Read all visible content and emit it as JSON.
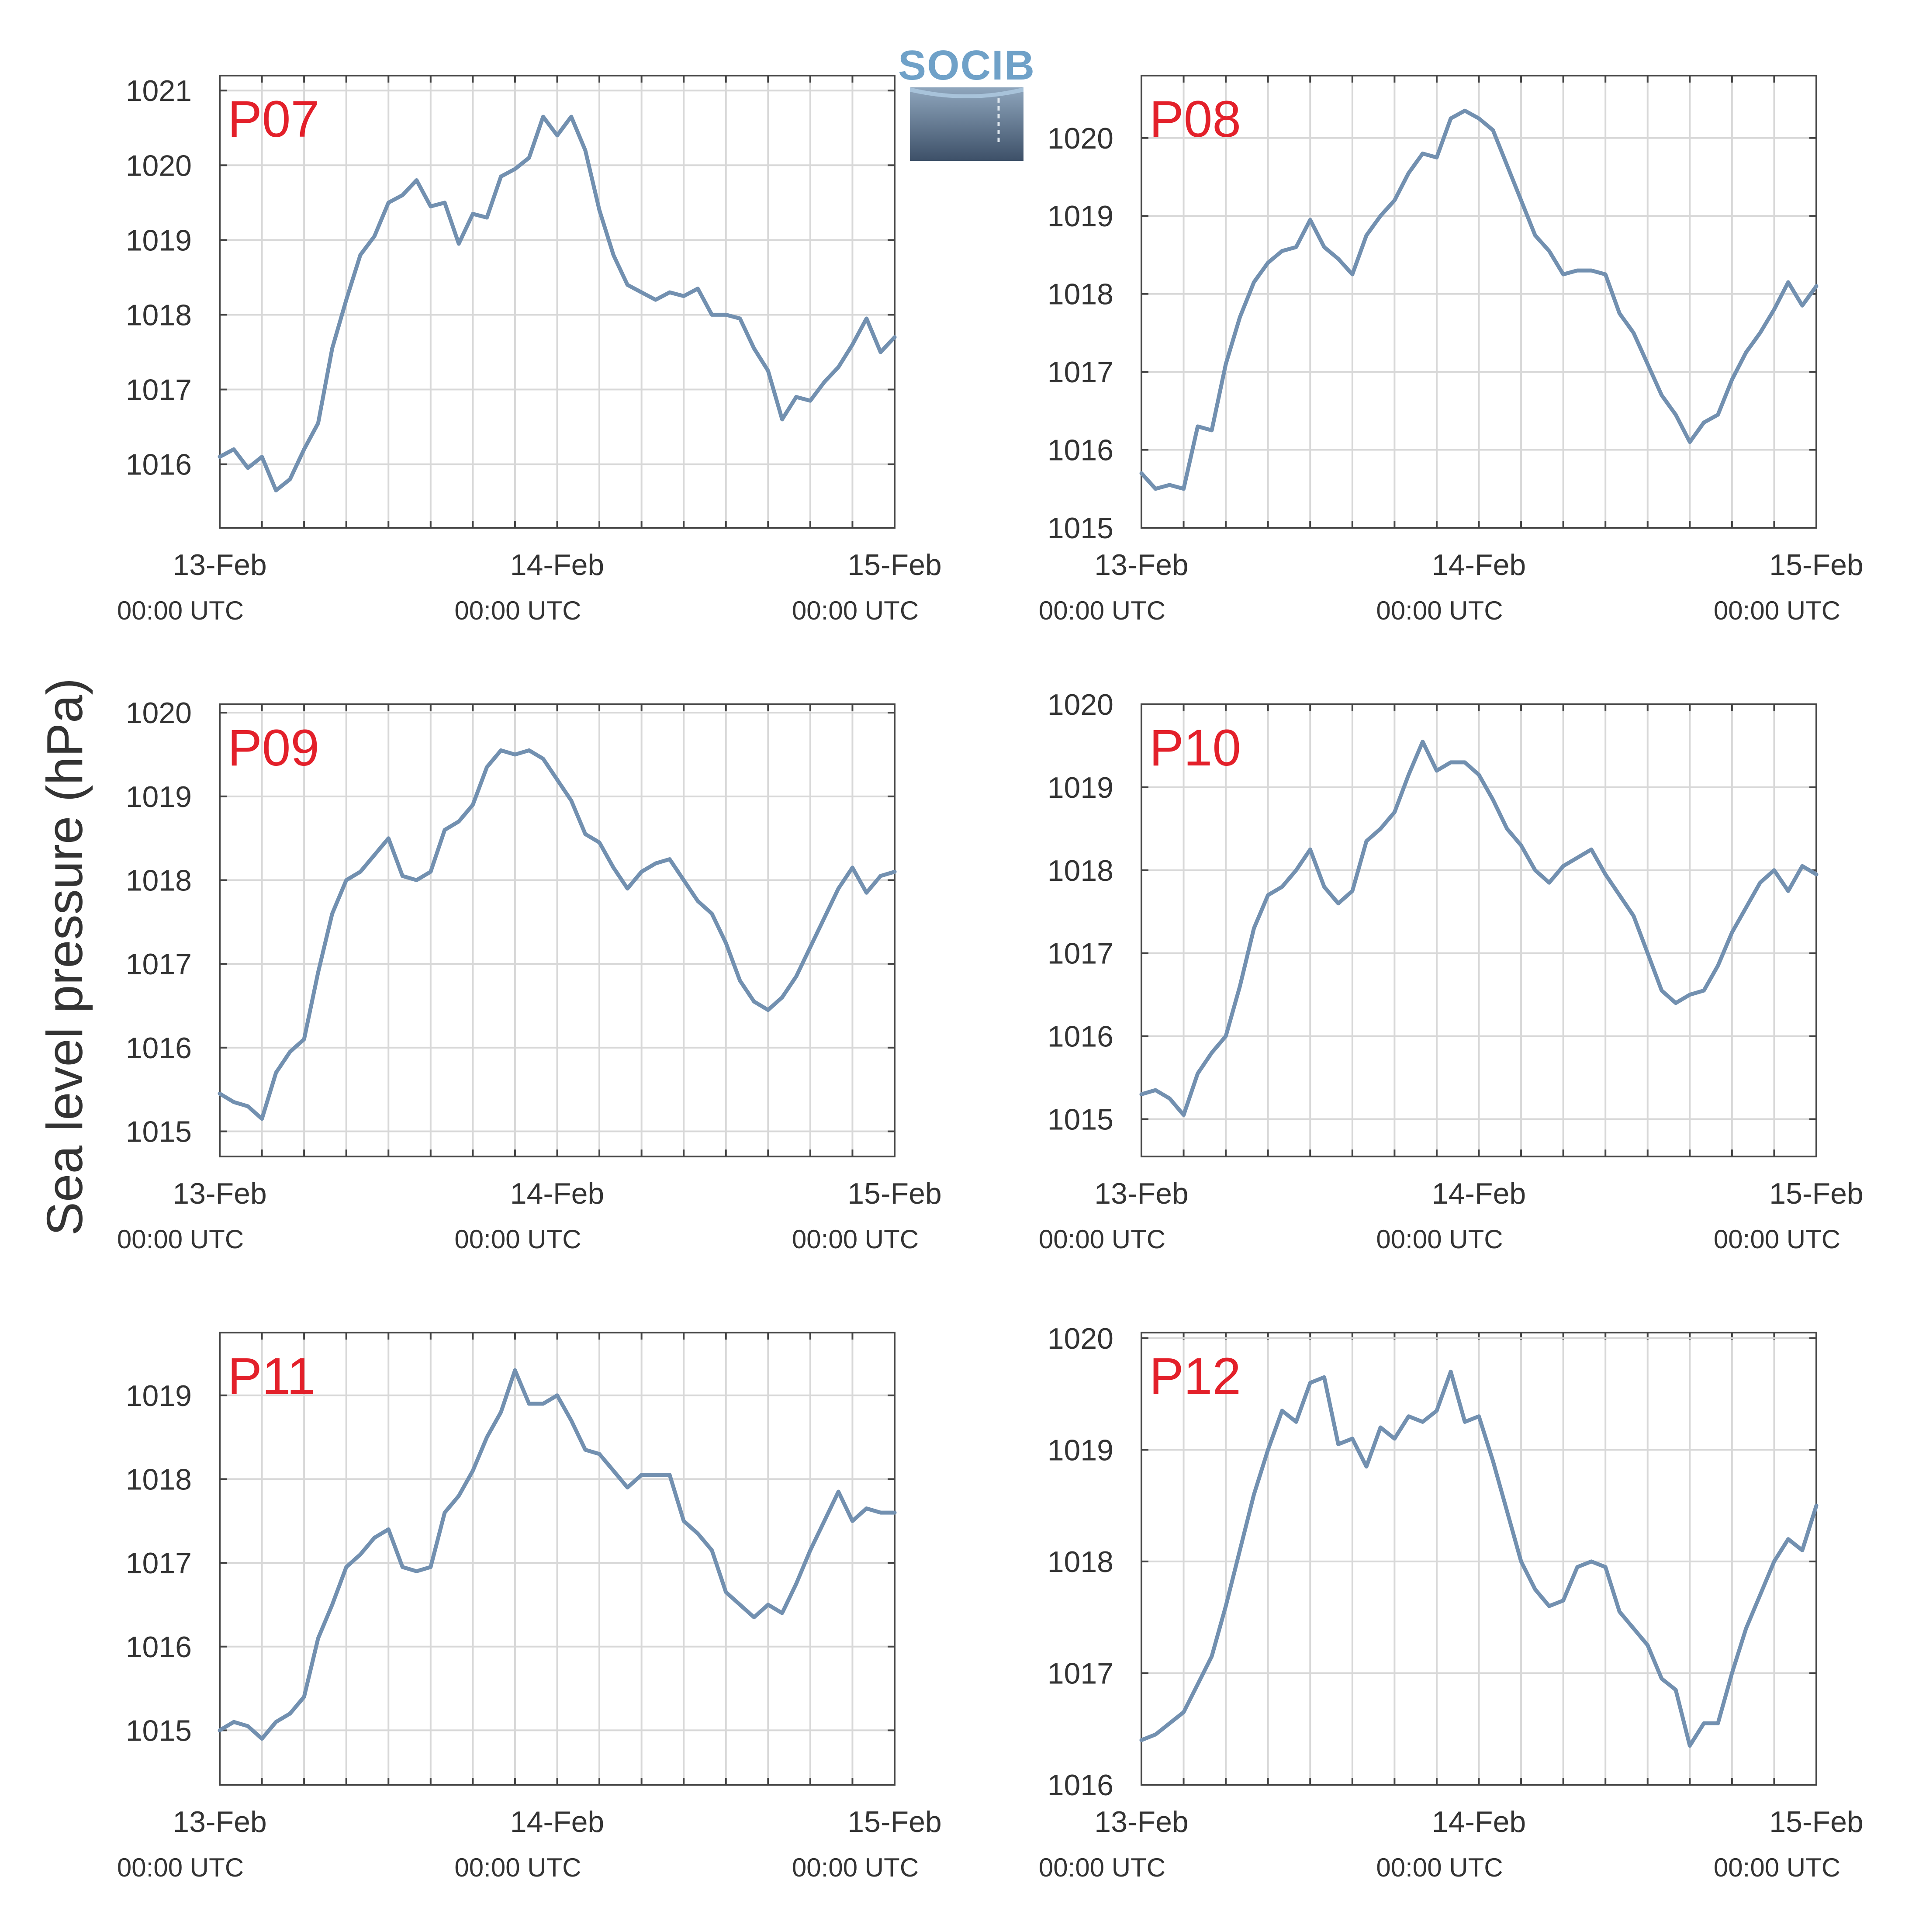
{
  "figure": {
    "ylabel": "Sea level pressure (hPa)",
    "logo": {
      "text": "SOCIB"
    },
    "colors": {
      "line": "#7290b0",
      "panel_label": "#e3202a",
      "grid": "#d8d8d8",
      "axis": "#444444",
      "text": "#333333"
    }
  },
  "chart_data": [
    {
      "type": "line",
      "panel": "P07",
      "grid": true,
      "x_hours": [
        0,
        3,
        6,
        9,
        12,
        15,
        18,
        21,
        24,
        27,
        30,
        33,
        36,
        39,
        42,
        45,
        48
      ],
      "x_ticks": [
        {
          "x": 0,
          "label": "13-Feb",
          "sub": "00:00 UTC"
        },
        {
          "x": 24,
          "label": "14-Feb",
          "sub": "00:00 UTC"
        },
        {
          "x": 48,
          "label": "15-Feb",
          "sub": "00:00 UTC"
        }
      ],
      "y_ticks": [
        1016,
        1017,
        1018,
        1019,
        1020,
        1021
      ],
      "ylim": [
        1015.15,
        1021.2
      ],
      "series": [
        {
          "x": [
            0,
            1,
            2,
            3,
            4,
            5,
            6,
            7,
            8,
            9,
            10,
            11,
            12,
            13,
            14,
            15,
            16,
            17,
            18,
            19,
            20,
            21,
            22,
            23,
            24,
            25,
            26,
            27,
            28,
            29,
            30,
            31,
            32,
            33,
            34,
            35,
            36,
            37,
            38,
            39,
            40,
            41,
            42,
            43,
            44,
            45,
            46,
            47,
            48
          ],
          "y": [
            1016.1,
            1016.2,
            1015.95,
            1016.1,
            1015.65,
            1015.8,
            1016.2,
            1016.55,
            1017.55,
            1018.2,
            1018.8,
            1019.05,
            1019.5,
            1019.6,
            1019.8,
            1019.45,
            1019.5,
            1018.95,
            1019.35,
            1019.3,
            1019.85,
            1019.95,
            1020.1,
            1020.65,
            1020.4,
            1020.65,
            1020.2,
            1019.4,
            1018.8,
            1018.4,
            1018.3,
            1018.2,
            1018.3,
            1018.25,
            1018.35,
            1018.0,
            1018.0,
            1017.95,
            1017.55,
            1017.25,
            1016.6,
            1016.9,
            1016.85,
            1017.1,
            1017.3,
            1017.6,
            1017.95,
            1017.5,
            1017.7
          ]
        }
      ]
    },
    {
      "type": "line",
      "panel": "P08",
      "grid": true,
      "x_hours": [
        0,
        3,
        6,
        9,
        12,
        15,
        18,
        21,
        24,
        27,
        30,
        33,
        36,
        39,
        42,
        45,
        48
      ],
      "x_ticks": [
        {
          "x": 0,
          "label": "13-Feb",
          "sub": "00:00 UTC"
        },
        {
          "x": 24,
          "label": "14-Feb",
          "sub": "00:00 UTC"
        },
        {
          "x": 48,
          "label": "15-Feb",
          "sub": "00:00 UTC"
        }
      ],
      "y_ticks": [
        1015,
        1016,
        1017,
        1018,
        1019,
        1020
      ],
      "ylim": [
        1015.0,
        1020.8
      ],
      "series": [
        {
          "x": [
            0,
            1,
            2,
            3,
            4,
            5,
            6,
            7,
            8,
            9,
            10,
            11,
            12,
            13,
            14,
            15,
            16,
            17,
            18,
            19,
            20,
            21,
            22,
            23,
            24,
            25,
            26,
            27,
            28,
            29,
            30,
            31,
            32,
            33,
            34,
            35,
            36,
            37,
            38,
            39,
            40,
            41,
            42,
            43,
            44,
            45,
            46,
            47,
            48
          ],
          "y": [
            1015.7,
            1015.5,
            1015.55,
            1015.5,
            1016.3,
            1016.25,
            1017.1,
            1017.7,
            1018.15,
            1018.4,
            1018.55,
            1018.6,
            1018.95,
            1018.6,
            1018.45,
            1018.25,
            1018.75,
            1019.0,
            1019.2,
            1019.55,
            1019.8,
            1019.75,
            1020.25,
            1020.35,
            1020.25,
            1020.1,
            1019.65,
            1019.2,
            1018.75,
            1018.55,
            1018.25,
            1018.3,
            1018.3,
            1018.25,
            1017.75,
            1017.5,
            1017.1,
            1016.7,
            1016.45,
            1016.1,
            1016.35,
            1016.45,
            1016.9,
            1017.25,
            1017.5,
            1017.8,
            1018.15,
            1017.85,
            1018.1
          ]
        }
      ]
    },
    {
      "type": "line",
      "panel": "P09",
      "grid": true,
      "x_hours": [
        0,
        3,
        6,
        9,
        12,
        15,
        18,
        21,
        24,
        27,
        30,
        33,
        36,
        39,
        42,
        45,
        48
      ],
      "x_ticks": [
        {
          "x": 0,
          "label": "13-Feb",
          "sub": "00:00 UTC"
        },
        {
          "x": 24,
          "label": "14-Feb",
          "sub": "00:00 UTC"
        },
        {
          "x": 48,
          "label": "15-Feb",
          "sub": "00:00 UTC"
        }
      ],
      "y_ticks": [
        1015,
        1016,
        1017,
        1018,
        1019,
        1020
      ],
      "ylim": [
        1014.7,
        1020.1
      ],
      "series": [
        {
          "x": [
            0,
            1,
            2,
            3,
            4,
            5,
            6,
            7,
            8,
            9,
            10,
            11,
            12,
            13,
            14,
            15,
            16,
            17,
            18,
            19,
            20,
            21,
            22,
            23,
            24,
            25,
            26,
            27,
            28,
            29,
            30,
            31,
            32,
            33,
            34,
            35,
            36,
            37,
            38,
            39,
            40,
            41,
            42,
            43,
            44,
            45,
            46,
            47,
            48
          ],
          "y": [
            1015.45,
            1015.35,
            1015.3,
            1015.15,
            1015.7,
            1015.95,
            1016.1,
            1016.9,
            1017.6,
            1018.0,
            1018.1,
            1018.3,
            1018.5,
            1018.05,
            1018.0,
            1018.1,
            1018.6,
            1018.7,
            1018.9,
            1019.35,
            1019.55,
            1019.5,
            1019.55,
            1019.45,
            1019.2,
            1018.95,
            1018.55,
            1018.45,
            1018.15,
            1017.9,
            1018.1,
            1018.2,
            1018.25,
            1018.0,
            1017.75,
            1017.6,
            1017.25,
            1016.8,
            1016.55,
            1016.45,
            1016.6,
            1016.85,
            1017.2,
            1017.55,
            1017.9,
            1018.15,
            1017.85,
            1018.05,
            1018.1
          ]
        }
      ]
    },
    {
      "type": "line",
      "panel": "P10",
      "grid": true,
      "x_hours": [
        0,
        3,
        6,
        9,
        12,
        15,
        18,
        21,
        24,
        27,
        30,
        33,
        36,
        39,
        42,
        45,
        48
      ],
      "x_ticks": [
        {
          "x": 0,
          "label": "13-Feb",
          "sub": "00:00 UTC"
        },
        {
          "x": 24,
          "label": "14-Feb",
          "sub": "00:00 UTC"
        },
        {
          "x": 48,
          "label": "15-Feb",
          "sub": "00:00 UTC"
        }
      ],
      "y_ticks": [
        1015,
        1016,
        1017,
        1018,
        1019,
        1020
      ],
      "ylim": [
        1014.55,
        1020.0
      ],
      "series": [
        {
          "x": [
            0,
            1,
            2,
            3,
            4,
            5,
            6,
            7,
            8,
            9,
            10,
            11,
            12,
            13,
            14,
            15,
            16,
            17,
            18,
            19,
            20,
            21,
            22,
            23,
            24,
            25,
            26,
            27,
            28,
            29,
            30,
            31,
            32,
            33,
            34,
            35,
            36,
            37,
            38,
            39,
            40,
            41,
            42,
            43,
            44,
            45,
            46,
            47,
            48
          ],
          "y": [
            1015.3,
            1015.35,
            1015.25,
            1015.05,
            1015.55,
            1015.8,
            1016.0,
            1016.6,
            1017.3,
            1017.7,
            1017.8,
            1018.0,
            1018.25,
            1017.8,
            1017.6,
            1017.75,
            1018.35,
            1018.5,
            1018.7,
            1019.15,
            1019.55,
            1019.2,
            1019.3,
            1019.3,
            1019.15,
            1018.85,
            1018.5,
            1018.3,
            1018.0,
            1017.85,
            1018.05,
            1018.15,
            1018.25,
            1017.95,
            1017.7,
            1017.45,
            1017.0,
            1016.55,
            1016.4,
            1016.5,
            1016.55,
            1016.85,
            1017.25,
            1017.55,
            1017.85,
            1018.0,
            1017.75,
            1018.05,
            1017.95
          ]
        }
      ]
    },
    {
      "type": "line",
      "panel": "P11",
      "grid": true,
      "x_hours": [
        0,
        3,
        6,
        9,
        12,
        15,
        18,
        21,
        24,
        27,
        30,
        33,
        36,
        39,
        42,
        45,
        48
      ],
      "x_ticks": [
        {
          "x": 0,
          "label": "13-Feb",
          "sub": "00:00 UTC"
        },
        {
          "x": 24,
          "label": "14-Feb",
          "sub": "00:00 UTC"
        },
        {
          "x": 48,
          "label": "15-Feb",
          "sub": "00:00 UTC"
        }
      ],
      "y_ticks": [
        1015,
        1016,
        1017,
        1018,
        1019
      ],
      "ylim": [
        1014.35,
        1019.75
      ],
      "series": [
        {
          "x": [
            0,
            1,
            2,
            3,
            4,
            5,
            6,
            7,
            8,
            9,
            10,
            11,
            12,
            13,
            14,
            15,
            16,
            17,
            18,
            19,
            20,
            21,
            22,
            23,
            24,
            25,
            26,
            27,
            28,
            29,
            30,
            31,
            32,
            33,
            34,
            35,
            36,
            37,
            38,
            39,
            40,
            41,
            42,
            43,
            44,
            45,
            46,
            47,
            48
          ],
          "y": [
            1015.0,
            1015.1,
            1015.05,
            1014.9,
            1015.1,
            1015.2,
            1015.4,
            1016.1,
            1016.5,
            1016.95,
            1017.1,
            1017.3,
            1017.4,
            1016.95,
            1016.9,
            1016.95,
            1017.6,
            1017.8,
            1018.1,
            1018.5,
            1018.8,
            1019.3,
            1018.9,
            1018.9,
            1019.0,
            1018.7,
            1018.35,
            1018.3,
            1018.1,
            1017.9,
            1018.05,
            1018.05,
            1018.05,
            1017.5,
            1017.35,
            1017.15,
            1016.65,
            1016.5,
            1016.35,
            1016.5,
            1016.4,
            1016.75,
            1017.15,
            1017.5,
            1017.85,
            1017.5,
            1017.65,
            1017.6,
            1017.6
          ]
        }
      ]
    },
    {
      "type": "line",
      "panel": "P12",
      "grid": true,
      "x_hours": [
        0,
        3,
        6,
        9,
        12,
        15,
        18,
        21,
        24,
        27,
        30,
        33,
        36,
        39,
        42,
        45,
        48
      ],
      "x_ticks": [
        {
          "x": 0,
          "label": "13-Feb",
          "sub": "00:00 UTC"
        },
        {
          "x": 24,
          "label": "14-Feb",
          "sub": "00:00 UTC"
        },
        {
          "x": 48,
          "label": "15-Feb",
          "sub": "00:00 UTC"
        }
      ],
      "y_ticks": [
        1016,
        1017,
        1018,
        1019,
        1020
      ],
      "ylim": [
        1016.0,
        1020.05
      ],
      "series": [
        {
          "x": [
            0,
            1,
            2,
            3,
            4,
            5,
            6,
            7,
            8,
            9,
            10,
            11,
            12,
            13,
            14,
            15,
            16,
            17,
            18,
            19,
            20,
            21,
            22,
            23,
            24,
            25,
            26,
            27,
            28,
            29,
            30,
            31,
            32,
            33,
            34,
            35,
            36,
            37,
            38,
            39,
            40,
            41,
            42,
            43,
            44,
            45,
            46,
            47,
            48
          ],
          "y": [
            1016.4,
            1016.45,
            1016.55,
            1016.65,
            1016.9,
            1017.15,
            1017.6,
            1018.1,
            1018.6,
            1019.0,
            1019.35,
            1019.25,
            1019.6,
            1019.65,
            1019.05,
            1019.1,
            1018.85,
            1019.2,
            1019.1,
            1019.3,
            1019.25,
            1019.35,
            1019.7,
            1019.25,
            1019.3,
            1018.9,
            1018.45,
            1018.0,
            1017.75,
            1017.6,
            1017.65,
            1017.95,
            1018.0,
            1017.95,
            1017.55,
            1017.4,
            1017.25,
            1016.95,
            1016.85,
            1016.35,
            1016.55,
            1016.55,
            1017.0,
            1017.4,
            1017.7,
            1018.0,
            1018.2,
            1018.1,
            1018.5
          ]
        }
      ]
    }
  ]
}
